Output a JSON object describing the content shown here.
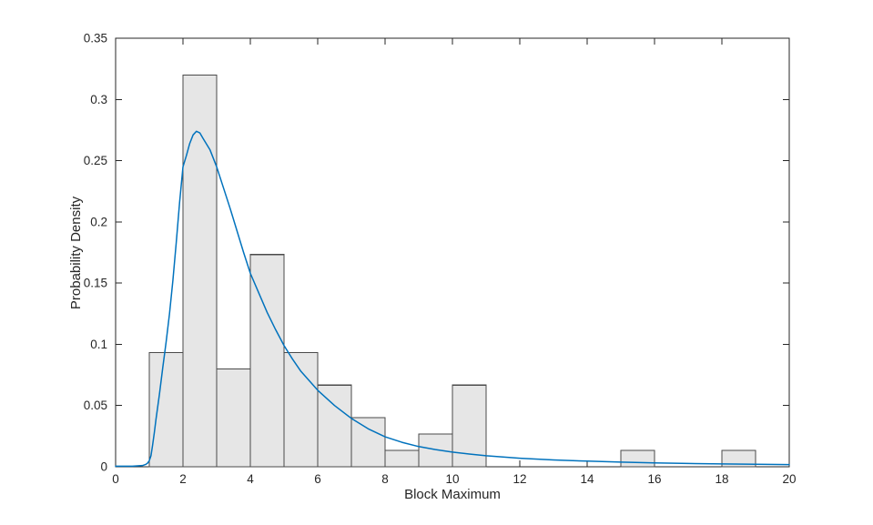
{
  "chart_data": {
    "type": "bar",
    "subtype": "histogram-with-fitted-density-line",
    "xlabel": "Block Maximum",
    "ylabel": "Probability Density",
    "xlim": [
      0,
      20
    ],
    "ylim": [
      0,
      0.35
    ],
    "xticks": [
      0,
      2,
      4,
      6,
      8,
      10,
      12,
      14,
      16,
      18,
      20
    ],
    "xtick_labels": [
      "0",
      "2",
      "4",
      "6",
      "8",
      "10",
      "12",
      "14",
      "16",
      "18",
      "20"
    ],
    "yticks": [
      0,
      0.05,
      0.1,
      0.15,
      0.2,
      0.25,
      0.3,
      0.35
    ],
    "ytick_labels": [
      "0",
      "0.05",
      "0.1",
      "0.15",
      "0.2",
      "0.25",
      "0.3",
      "0.35"
    ],
    "grid": false,
    "legend": null,
    "box": true,
    "tick_direction": "in",
    "series": [
      {
        "name": "block-maxima-histogram",
        "type": "bar",
        "bin_edges": [
          1,
          2,
          3,
          4,
          5,
          6,
          7,
          8,
          9,
          10,
          11,
          12,
          13,
          14,
          15,
          16,
          17,
          18,
          19,
          20
        ],
        "values": [
          0.0933,
          0.32,
          0.08,
          0.1733,
          0.0933,
          0.0667,
          0.04,
          0.0133,
          0.0267,
          0.0667,
          0,
          0,
          0,
          0,
          0.0133,
          0,
          0,
          0.0133,
          0
        ]
      },
      {
        "name": "fitted-gev-pdf-curve",
        "type": "line",
        "x": [
          0,
          0.5,
          0.8,
          0.9,
          0.95,
          1.0,
          1.05,
          1.1,
          1.15,
          1.2,
          1.3,
          1.4,
          1.5,
          1.6,
          1.7,
          1.8,
          1.9,
          2.0,
          2.1,
          2.2,
          2.3,
          2.4,
          2.5,
          2.6,
          2.8,
          3.0,
          3.2,
          3.4,
          3.6,
          3.8,
          4.0,
          4.25,
          4.5,
          4.75,
          5.0,
          5.25,
          5.5,
          6.0,
          6.5,
          7.0,
          7.5,
          8.0,
          8.5,
          9.0,
          9.5,
          10.0,
          10.5,
          11.0,
          11.5,
          12.0,
          13.0,
          14.0,
          15.0,
          16.0,
          17.0,
          18.0,
          19.0,
          20.0
        ],
        "y": [
          0.0005,
          0.0005,
          0.001,
          0.002,
          0.003,
          0.005,
          0.009,
          0.018,
          0.028,
          0.039,
          0.059,
          0.081,
          0.102,
          0.125,
          0.152,
          0.183,
          0.216,
          0.245,
          0.254,
          0.264,
          0.271,
          0.274,
          0.2727,
          0.268,
          0.259,
          0.245,
          0.228,
          0.211,
          0.193,
          0.175,
          0.158,
          0.142,
          0.126,
          0.112,
          0.099,
          0.088,
          0.078,
          0.0625,
          0.05,
          0.0395,
          0.031,
          0.0245,
          0.02,
          0.0165,
          0.014,
          0.012,
          0.0104,
          0.009,
          0.008,
          0.007,
          0.0056,
          0.0046,
          0.0038,
          0.0032,
          0.0027,
          0.0023,
          0.002,
          0.0018
        ]
      }
    ],
    "style": {
      "bar_fill": "#e6e6e6",
      "bar_edge": "#4a4a4a",
      "curve_color": "#0072bd",
      "axis_color": "#262626",
      "text_color": "#262626",
      "background": "#ffffff"
    }
  }
}
